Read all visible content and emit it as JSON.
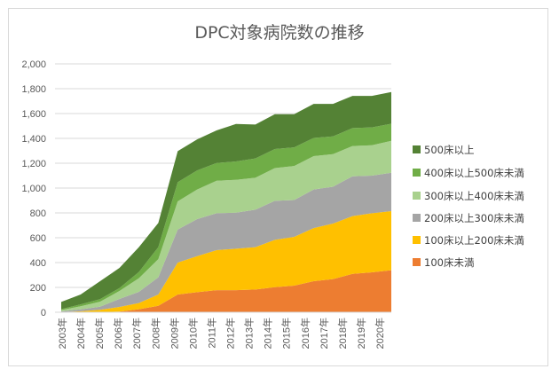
{
  "chart_data": {
    "type": "area",
    "stacked": true,
    "title": "DPC対象病院数の推移",
    "xlabel": "",
    "ylabel": "",
    "ylim": [
      0,
      2000
    ],
    "yticks": [
      0,
      200,
      400,
      600,
      800,
      1000,
      1200,
      1400,
      1600,
      1800,
      2000
    ],
    "ytick_labels": [
      "0",
      "200",
      "400",
      "600",
      "800",
      "1,000",
      "1,200",
      "1,400",
      "1,600",
      "1,800",
      "2,000"
    ],
    "grid": true,
    "legend_position": "right",
    "categories": [
      "2003年",
      "2004年",
      "2005年",
      "2006年",
      "2007年",
      "2008年",
      "2009年",
      "2010年",
      "2011年",
      "2012年",
      "2013年",
      "2014年",
      "2015年",
      "2016年",
      "2017年",
      "2018年",
      "2019年",
      "2020年"
    ],
    "series": [
      {
        "name": "100床未満",
        "color": "#ED7D31",
        "values": [
          0,
          0,
          0,
          5,
          24,
          52,
          143,
          162,
          178,
          178,
          183,
          202,
          214,
          250,
          267,
          309,
          321,
          338
        ]
      },
      {
        "name": "100床以上200床未満",
        "color": "#FFC000",
        "values": [
          2,
          8,
          20,
          38,
          50,
          91,
          257,
          290,
          322,
          334,
          341,
          381,
          393,
          428,
          447,
          465,
          476,
          476
        ]
      },
      {
        "name": "200床以上300床未満",
        "color": "#A5A5A5",
        "values": [
          5,
          15,
          25,
          64,
          90,
          138,
          266,
          298,
          297,
          290,
          302,
          314,
          297,
          310,
          297,
          321,
          303,
          309
        ]
      },
      {
        "name": "300床以上400床未満",
        "color": "#A9D18E",
        "values": [
          10,
          25,
          40,
          64,
          110,
          147,
          227,
          238,
          262,
          264,
          257,
          264,
          274,
          269,
          262,
          243,
          245,
          257
        ]
      },
      {
        "name": "400床以上500床未満",
        "color": "#70AD47",
        "values": [
          8,
          15,
          20,
          24,
          50,
          96,
          154,
          154,
          143,
          148,
          155,
          153,
          150,
          147,
          143,
          145,
          143,
          138
        ]
      },
      {
        "name": "500床以上",
        "color": "#548235",
        "values": [
          58,
          80,
          145,
          162,
          200,
          195,
          250,
          250,
          262,
          302,
          274,
          281,
          267,
          274,
          262,
          259,
          254,
          255
        ]
      }
    ]
  }
}
